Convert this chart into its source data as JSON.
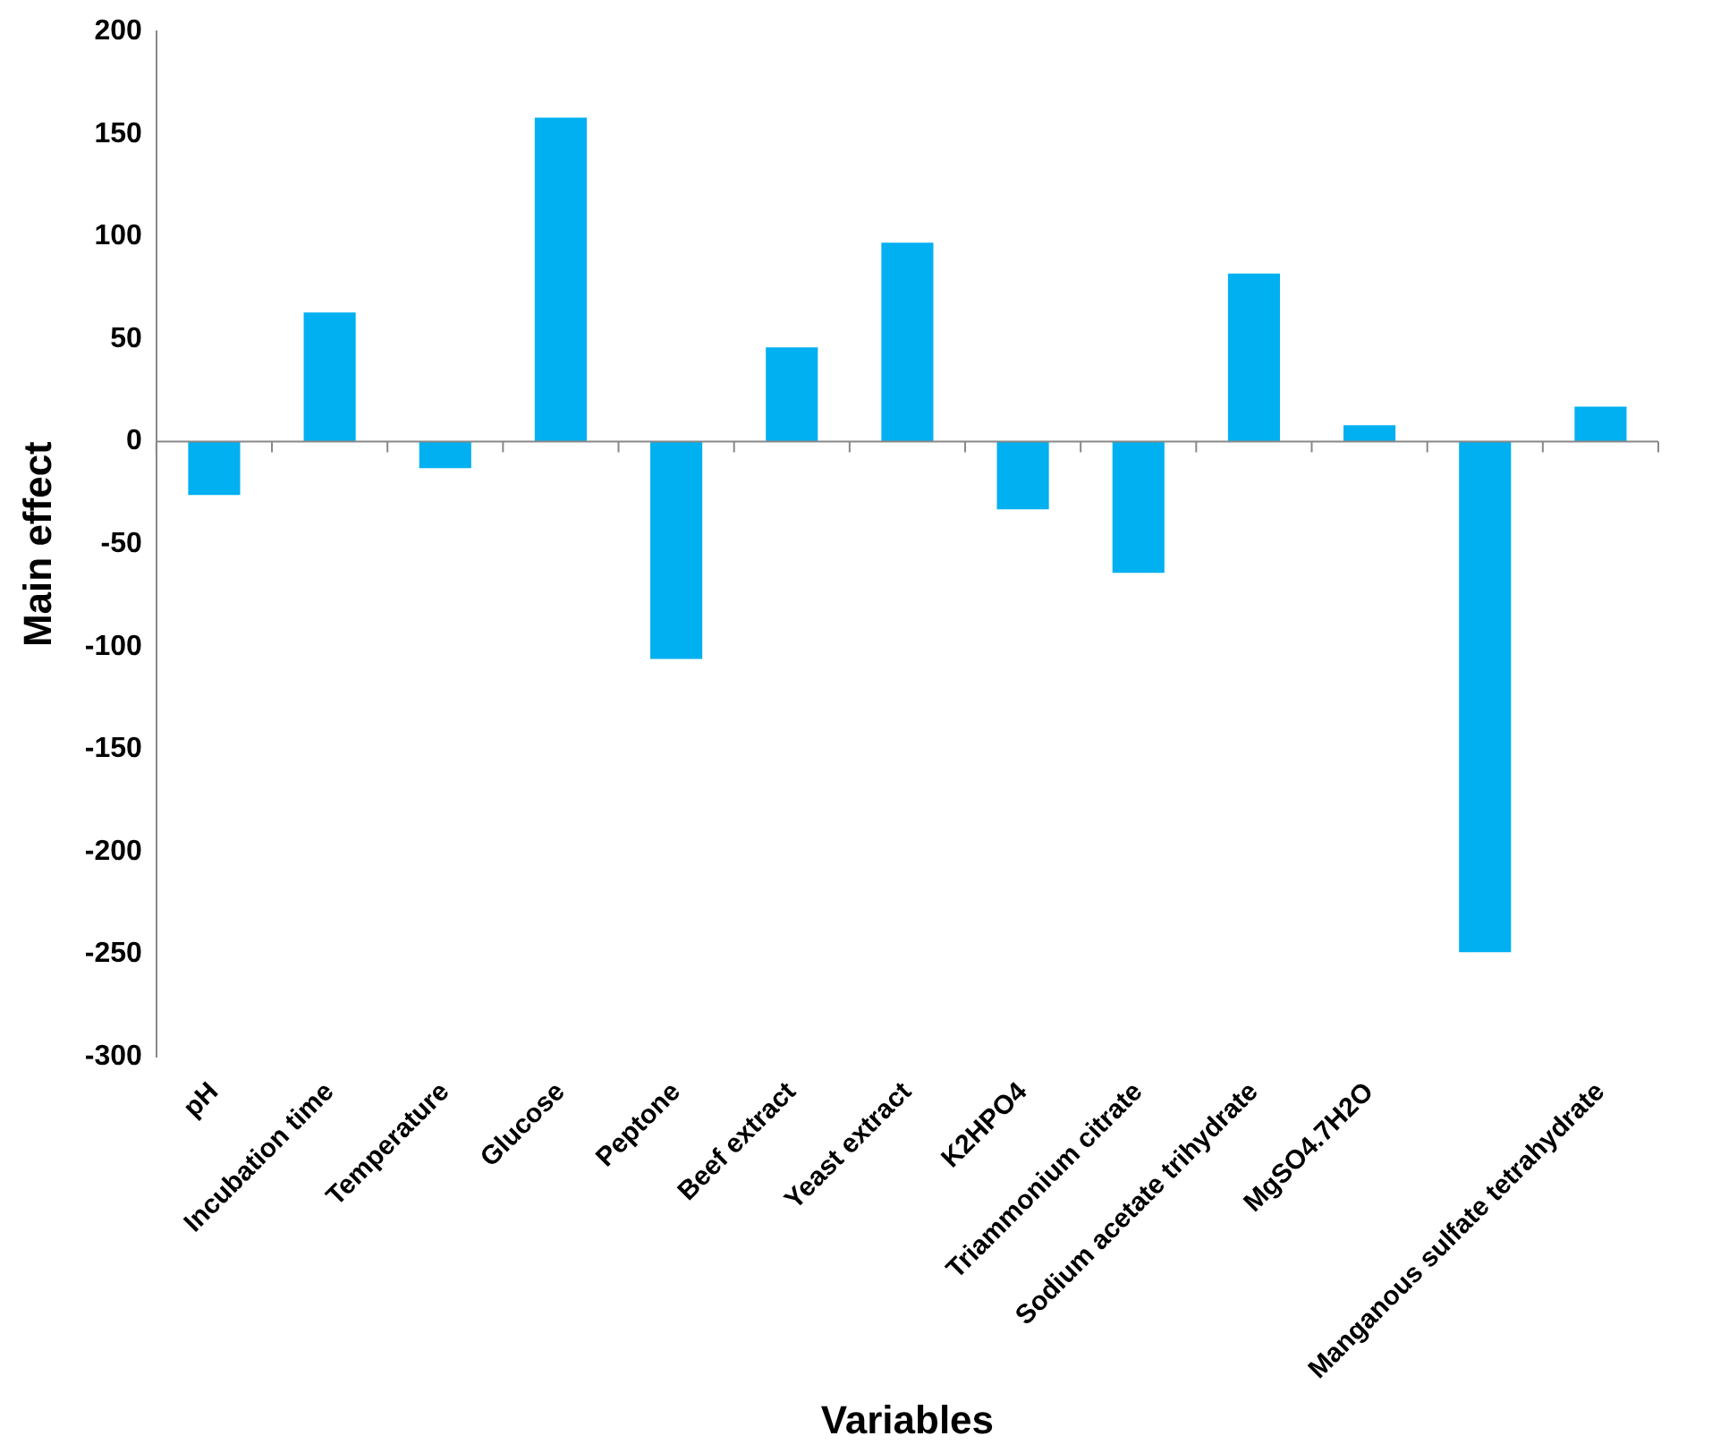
{
  "chart_data": {
    "type": "bar",
    "xlabel": "Variables",
    "ylabel": "Main effect",
    "categories": [
      "pH",
      "Incubation time",
      "Temperature",
      "Glucose",
      "Peptone",
      "Beef extract",
      "Yeast extract",
      "K2HPO4",
      "Triammonium citrate",
      "Sodium acetate trihydrate",
      "MgSO4.7H2O",
      null,
      "Manganous sulfate tetrahydrate"
    ],
    "values": [
      -26,
      63,
      -13,
      158,
      -106,
      46,
      97,
      -33,
      -64,
      82,
      8,
      -249,
      17
    ],
    "color": "#00b0f0",
    "ylim": [
      -300,
      200
    ],
    "yticks": [
      -300,
      -250,
      -200,
      -150,
      -100,
      -50,
      0,
      50,
      100,
      150,
      200
    ],
    "legend": false
  }
}
